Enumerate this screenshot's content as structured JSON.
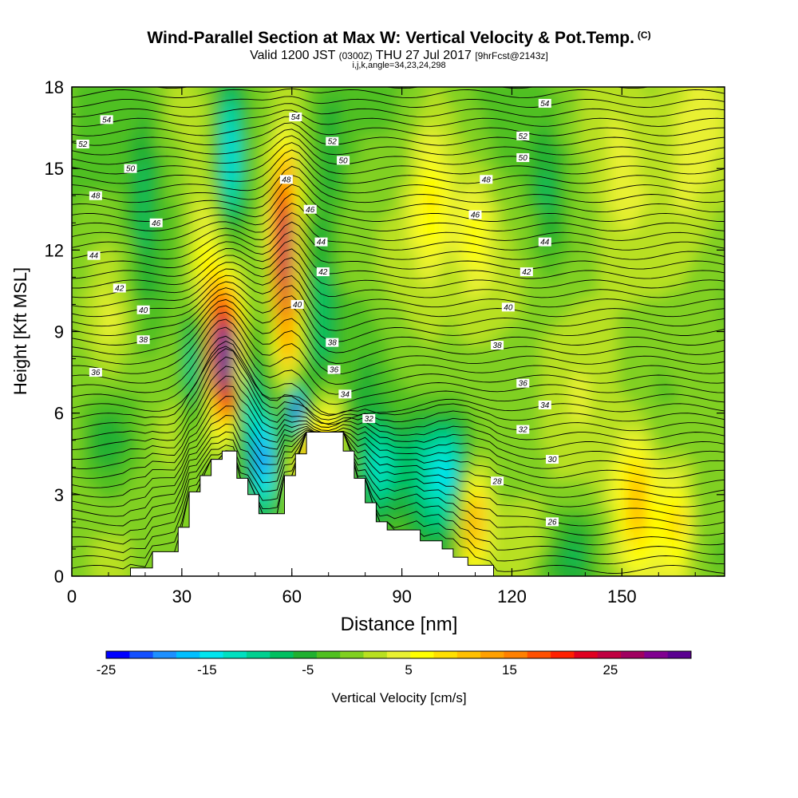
{
  "title": {
    "main": "Wind-Parallel Section at Max W: Vertical Velocity & Pot.Temp.",
    "copyright": "(C)",
    "valid_prefix": "Valid 1200 JST",
    "valid_utc": "(0300Z)",
    "valid_date": "THU 27 Jul 2017",
    "forecast": "[9hrFcst@2143z]",
    "params": "i,j,k,angle=34,23,24,298"
  },
  "chart_data": {
    "type": "heatmap",
    "xlabel": "Distance [nm]",
    "ylabel": "Height [Kft MSL]",
    "xlim": [
      0,
      178
    ],
    "ylim": [
      0,
      18
    ],
    "xticks": [
      "0",
      "30",
      "60",
      "90",
      "120",
      "150"
    ],
    "yticks": [
      "0",
      "3",
      "6",
      "9",
      "12",
      "15",
      "18"
    ],
    "colorbar": {
      "label": "Vertical Velocity [cm/s]",
      "ticks": [
        "-25",
        "-15",
        "-5",
        "5",
        "15",
        "25"
      ],
      "colors": [
        "#0000ff",
        "#1450ff",
        "#1e90ff",
        "#00bfff",
        "#00e5ee",
        "#00e0c0",
        "#00d090",
        "#00c060",
        "#20b030",
        "#50c020",
        "#80d020",
        "#b8e020",
        "#e8f030",
        "#ffff00",
        "#ffe000",
        "#ffc000",
        "#ffa000",
        "#ff8000",
        "#ff5000",
        "#ff2000",
        "#e00020",
        "#c00040",
        "#a00060",
        "#800090",
        "#5a0090"
      ]
    },
    "terrain": [
      [
        0,
        0
      ],
      [
        16,
        0
      ],
      [
        16,
        0.3
      ],
      [
        22,
        0.3
      ],
      [
        22,
        0.9
      ],
      [
        29,
        0.9
      ],
      [
        29,
        1.8
      ],
      [
        32,
        1.8
      ],
      [
        32,
        3.1
      ],
      [
        35,
        3.1
      ],
      [
        35,
        3.7
      ],
      [
        38,
        3.7
      ],
      [
        38,
        4.3
      ],
      [
        41,
        4.3
      ],
      [
        41,
        4.6
      ],
      [
        45,
        4.6
      ],
      [
        45,
        3.6
      ],
      [
        48,
        3.6
      ],
      [
        48,
        3.0
      ],
      [
        51,
        3.0
      ],
      [
        51,
        2.3
      ],
      [
        58,
        2.3
      ],
      [
        58,
        3.7
      ],
      [
        61,
        3.7
      ],
      [
        61,
        4.5
      ],
      [
        64,
        4.5
      ],
      [
        64,
        5.3
      ],
      [
        74,
        5.3
      ],
      [
        74,
        4.6
      ],
      [
        77,
        4.6
      ],
      [
        77,
        3.6
      ],
      [
        80,
        3.6
      ],
      [
        80,
        2.7
      ],
      [
        83,
        2.7
      ],
      [
        83,
        2.0
      ],
      [
        86,
        2.0
      ],
      [
        86,
        1.7
      ],
      [
        95,
        1.7
      ],
      [
        95,
        1.3
      ],
      [
        101,
        1.3
      ],
      [
        101,
        1.0
      ],
      [
        104,
        1.0
      ],
      [
        104,
        0.7
      ],
      [
        108,
        0.7
      ],
      [
        108,
        0.4
      ],
      [
        115,
        0.4
      ],
      [
        115,
        0
      ],
      [
        178,
        0
      ]
    ],
    "velocity_cells": [
      {
        "x": 42,
        "y": 8.0,
        "sx": 3.2,
        "sy": 1.6,
        "w": 30
      },
      {
        "x": 42,
        "y": 7.4,
        "sx": 2.5,
        "sy": 1.2,
        "w": 5
      },
      {
        "x": 58,
        "y": 12.5,
        "sx": 2.2,
        "sy": 2.0,
        "w": 28
      },
      {
        "x": 59,
        "y": 9.0,
        "sx": 2.0,
        "sy": 1.6,
        "w": 14
      },
      {
        "x": 36,
        "y": 9.5,
        "sx": 4.5,
        "sy": 2.5,
        "w": 8
      },
      {
        "x": 40,
        "y": 12.5,
        "sx": 5.0,
        "sy": 2.5,
        "w": 6
      },
      {
        "x": 34,
        "y": 8.0,
        "sx": 2.6,
        "sy": 1.6,
        "w": -16
      },
      {
        "x": 47,
        "y": 7.0,
        "sx": 2.2,
        "sy": 1.6,
        "w": -12
      },
      {
        "x": 52,
        "y": 4.2,
        "sx": 2.0,
        "sy": 1.4,
        "w": -18
      },
      {
        "x": 61,
        "y": 6.0,
        "sx": 1.6,
        "sy": 0.8,
        "w": -22
      },
      {
        "x": 43,
        "y": 15.5,
        "sx": 2.5,
        "sy": 2.2,
        "w": -12
      },
      {
        "x": 43,
        "y": 13.5,
        "sx": 4.0,
        "sy": 2.0,
        "w": -6
      },
      {
        "x": 68,
        "y": 9.0,
        "sx": 3.0,
        "sy": 2.5,
        "w": -7
      },
      {
        "x": 65,
        "y": 4.2,
        "sx": 3.0,
        "sy": 1.0,
        "w": 14
      },
      {
        "x": 70,
        "y": 5.5,
        "sx": 2.5,
        "sy": 1.2,
        "w": 10
      },
      {
        "x": 84,
        "y": 3.8,
        "sx": 3.0,
        "sy": 1.2,
        "w": -9
      },
      {
        "x": 96,
        "y": 4.0,
        "sx": 5.0,
        "sy": 1.6,
        "w": -8
      },
      {
        "x": 104,
        "y": 3.8,
        "sx": 4.0,
        "sy": 1.6,
        "w": -12
      },
      {
        "x": 109,
        "y": 2.2,
        "sx": 3.0,
        "sy": 1.4,
        "w": 17
      },
      {
        "x": 98,
        "y": 13.5,
        "sx": 4.0,
        "sy": 2.2,
        "w": 8
      },
      {
        "x": 110,
        "y": 12.5,
        "sx": 4.0,
        "sy": 1.8,
        "w": 7
      },
      {
        "x": 154,
        "y": 3.0,
        "sx": 4.0,
        "sy": 1.8,
        "w": 11
      },
      {
        "x": 150,
        "y": 15.0,
        "sx": 6.0,
        "sy": 2.5,
        "w": 5
      },
      {
        "x": 168,
        "y": 14.5,
        "sx": 7.0,
        "sy": 3.5,
        "w": 4
      },
      {
        "x": 165,
        "y": 2.0,
        "sx": 3.0,
        "sy": 1.5,
        "w": 8
      },
      {
        "x": 126,
        "y": 1.2,
        "sx": 6.0,
        "sy": 1.2,
        "w": 3
      },
      {
        "x": 135,
        "y": 1.0,
        "sx": 6.0,
        "sy": 1.2,
        "w": -6
      },
      {
        "x": 10,
        "y": 5.0,
        "sx": 5.0,
        "sy": 1.5,
        "w": -5
      },
      {
        "x": 10,
        "y": 9.0,
        "sx": 4.0,
        "sy": 2.0,
        "w": 4
      },
      {
        "x": 20,
        "y": 14.0,
        "sx": 3.0,
        "sy": 3.0,
        "w": -5
      },
      {
        "x": 70,
        "y": 16.0,
        "sx": 4.0,
        "sy": 2.0,
        "w": -6
      },
      {
        "x": 130,
        "y": 14.0,
        "sx": 3.0,
        "sy": 2.0,
        "w": -5
      },
      {
        "x": 140,
        "y": 9.0,
        "sx": 8.0,
        "sy": 3.0,
        "w": 3
      },
      {
        "x": 80,
        "y": 8.0,
        "sx": 4.0,
        "sy": 3.0,
        "w": -3
      }
    ],
    "isentrope_labels": [
      {
        "x": 9.5,
        "y": 16.8,
        "t": "54"
      },
      {
        "x": 3,
        "y": 15.9,
        "t": "52"
      },
      {
        "x": 16,
        "y": 15.0,
        "t": "50"
      },
      {
        "x": 6.5,
        "y": 14.0,
        "t": "48"
      },
      {
        "x": 23,
        "y": 13.0,
        "t": "46"
      },
      {
        "x": 6,
        "y": 11.8,
        "t": "44"
      },
      {
        "x": 13,
        "y": 10.6,
        "t": "42"
      },
      {
        "x": 19.5,
        "y": 9.8,
        "t": "40"
      },
      {
        "x": 19.5,
        "y": 8.7,
        "t": "38"
      },
      {
        "x": 6.5,
        "y": 7.5,
        "t": "36"
      },
      {
        "x": 61,
        "y": 16.9,
        "t": "54"
      },
      {
        "x": 71,
        "y": 16.0,
        "t": "52"
      },
      {
        "x": 74,
        "y": 15.3,
        "t": "50"
      },
      {
        "x": 58.5,
        "y": 14.6,
        "t": "48"
      },
      {
        "x": 65,
        "y": 13.5,
        "t": "46"
      },
      {
        "x": 68,
        "y": 12.3,
        "t": "44"
      },
      {
        "x": 68.5,
        "y": 11.2,
        "t": "42"
      },
      {
        "x": 61.5,
        "y": 10.0,
        "t": "40"
      },
      {
        "x": 71,
        "y": 8.6,
        "t": "38"
      },
      {
        "x": 71.5,
        "y": 7.6,
        "t": "36"
      },
      {
        "x": 74.5,
        "y": 6.7,
        "t": "34"
      },
      {
        "x": 81,
        "y": 5.8,
        "t": "32"
      },
      {
        "x": 129,
        "y": 17.4,
        "t": "54"
      },
      {
        "x": 123,
        "y": 16.2,
        "t": "52"
      },
      {
        "x": 123,
        "y": 15.4,
        "t": "50"
      },
      {
        "x": 113,
        "y": 14.6,
        "t": "48"
      },
      {
        "x": 110,
        "y": 13.3,
        "t": "46"
      },
      {
        "x": 129,
        "y": 12.3,
        "t": "44"
      },
      {
        "x": 124,
        "y": 11.2,
        "t": "42"
      },
      {
        "x": 119,
        "y": 9.9,
        "t": "40"
      },
      {
        "x": 116,
        "y": 8.5,
        "t": "38"
      },
      {
        "x": 123,
        "y": 7.1,
        "t": "36"
      },
      {
        "x": 129,
        "y": 6.3,
        "t": "34"
      },
      {
        "x": 123,
        "y": 5.4,
        "t": "32"
      },
      {
        "x": 131,
        "y": 4.3,
        "t": "30"
      },
      {
        "x": 116,
        "y": 3.5,
        "t": "28"
      },
      {
        "x": 131,
        "y": 2.0,
        "t": "26"
      }
    ]
  }
}
